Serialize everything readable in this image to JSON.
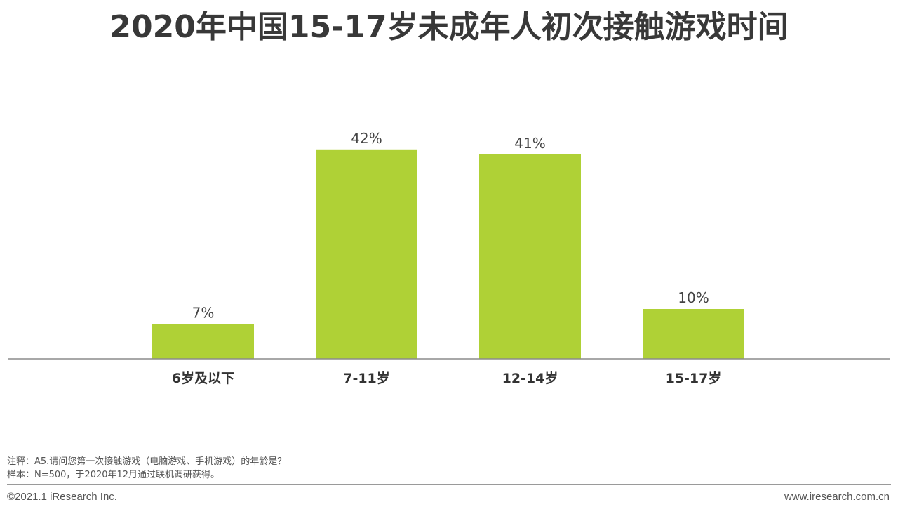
{
  "chart_data": {
    "type": "bar",
    "title": "2020年中国15-17岁未成年人初次接触游戏时间",
    "categories": [
      "6岁及以下",
      "7-11岁",
      "12-14岁",
      "15-17岁"
    ],
    "values": [
      7,
      42,
      41,
      10
    ],
    "data_labels": [
      "7%",
      "42%",
      "41%",
      "10%"
    ],
    "grid": false,
    "legend": "none"
  },
  "footer": {
    "note": "注释：A5.请问您第一次接触游戏（电脑游戏、手机游戏）的年龄是？",
    "sample": "样本：N=500，于2020年12月通过联机调研获得。",
    "copyright": "©2021.1 iResearch Inc.",
    "website": "www.iresearch.com.cn"
  },
  "colors": {
    "bar": "#afd136",
    "axis": "#8c8c8c",
    "title": "#383838",
    "text": "#555555"
  }
}
